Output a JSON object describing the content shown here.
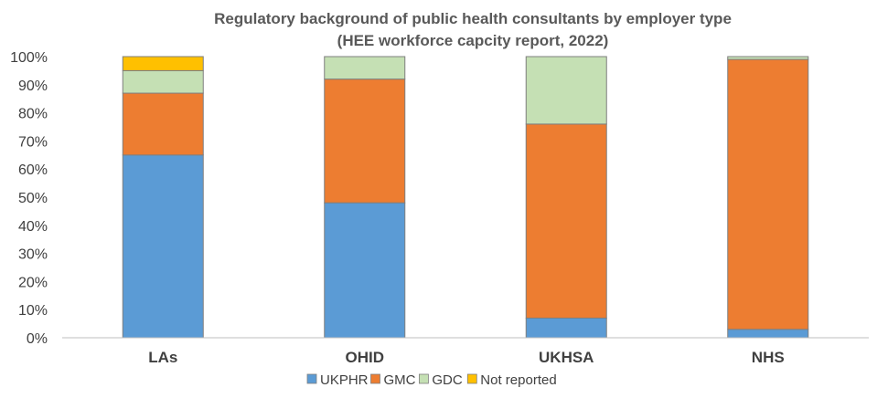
{
  "chart_data": {
    "type": "bar",
    "stacked": true,
    "title": "Regulatory background of public health consultants by employer type",
    "subtitle": "(HEE workforce capcity report, 2022)",
    "categories": [
      "LAs",
      "OHID",
      "UKHSA",
      "NHS"
    ],
    "series": [
      {
        "name": "UKPHR",
        "color": "#5B9BD5",
        "values": [
          65,
          48,
          7,
          3
        ]
      },
      {
        "name": "GMC",
        "color": "#ED7D31",
        "values": [
          22,
          44,
          69,
          96
        ]
      },
      {
        "name": "GDC",
        "color": "#C5E0B4",
        "values": [
          8,
          8,
          24,
          1
        ]
      },
      {
        "name": "Not reported",
        "color": "#FFC000",
        "values": [
          5,
          0,
          0,
          0
        ]
      }
    ],
    "ylim": [
      0,
      100
    ],
    "yticks": [
      "0%",
      "10%",
      "20%",
      "30%",
      "40%",
      "50%",
      "60%",
      "70%",
      "80%",
      "90%",
      "100%"
    ],
    "grid": false,
    "legend_position": "bottom"
  }
}
